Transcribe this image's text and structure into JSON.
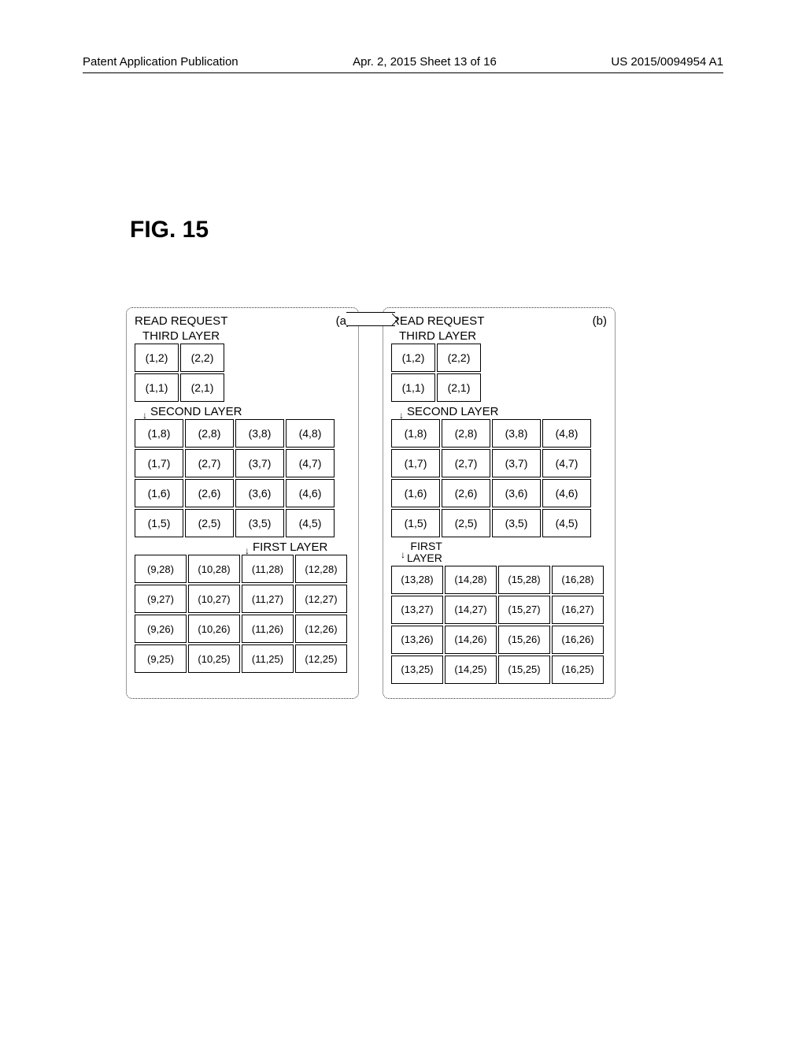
{
  "header": {
    "left": "Patent Application Publication",
    "center": "Apr. 2, 2015  Sheet 13 of 16",
    "right": "US 2015/0094954 A1"
  },
  "figure_label": "FIG. 15",
  "panels": [
    {
      "id": "a",
      "title": "READ REQUEST",
      "marker": "(a)",
      "layers": [
        {
          "name": "THIRD LAYER",
          "cols": 2,
          "cell_class": "cell-small",
          "rows": [
            [
              "(1,1)",
              "(2,1)"
            ],
            [
              "(1,2)",
              "(2,2)"
            ]
          ]
        },
        {
          "name": "SECOND LAYER",
          "cols": 4,
          "cell_class": "cell-med",
          "rows": [
            [
              "(1,5)",
              "(2,5)",
              "(3,5)",
              "(4,5)"
            ],
            [
              "(1,6)",
              "(2,6)",
              "(3,6)",
              "(4,6)"
            ],
            [
              "(1,7)",
              "(2,7)",
              "(3,7)",
              "(4,7)"
            ],
            [
              "(1,8)",
              "(2,8)",
              "(3,8)",
              "(4,8)"
            ]
          ]
        },
        {
          "name": "FIRST LAYER",
          "label_class": "first-layer-label-a",
          "cols": 4,
          "cell_class": "cell-large",
          "rows": [
            [
              "(9,25)",
              "(10,25)",
              "(11,25)",
              "(12,25)"
            ],
            [
              "(9,26)",
              "(10,26)",
              "(11,26)",
              "(12,26)"
            ],
            [
              "(9,27)",
              "(10,27)",
              "(11,27)",
              "(12,27)"
            ],
            [
              "(9,28)",
              "(10,28)",
              "(11,28)",
              "(12,28)"
            ]
          ]
        }
      ]
    },
    {
      "id": "b",
      "title": "READ REQUEST",
      "marker": "(b)",
      "layers": [
        {
          "name": "THIRD LAYER",
          "cols": 2,
          "cell_class": "cell-small",
          "rows": [
            [
              "(1,1)",
              "(2,1)"
            ],
            [
              "(1,2)",
              "(2,2)"
            ]
          ]
        },
        {
          "name": "SECOND LAYER",
          "cols": 4,
          "cell_class": "cell-med",
          "rows": [
            [
              "(1,5)",
              "(2,5)",
              "(3,5)",
              "(4,5)"
            ],
            [
              "(1,6)",
              "(2,6)",
              "(3,6)",
              "(4,6)"
            ],
            [
              "(1,7)",
              "(2,7)",
              "(3,7)",
              "(4,7)"
            ],
            [
              "(1,8)",
              "(2,8)",
              "(3,8)",
              "(4,8)"
            ]
          ]
        },
        {
          "name": "FIRST\nLAYER",
          "label_class": "first-layer-label-b",
          "cols": 4,
          "cell_class": "cell-large",
          "rows": [
            [
              "(13,25)",
              "(14,25)",
              "(15,25)",
              "(16,25)"
            ],
            [
              "(13,26)",
              "(14,26)",
              "(15,26)",
              "(16,26)"
            ],
            [
              "(13,27)",
              "(14,27)",
              "(15,27)",
              "(16,27)"
            ],
            [
              "(13,28)",
              "(14,28)",
              "(15,28)",
              "(16,28)"
            ]
          ]
        }
      ]
    }
  ]
}
